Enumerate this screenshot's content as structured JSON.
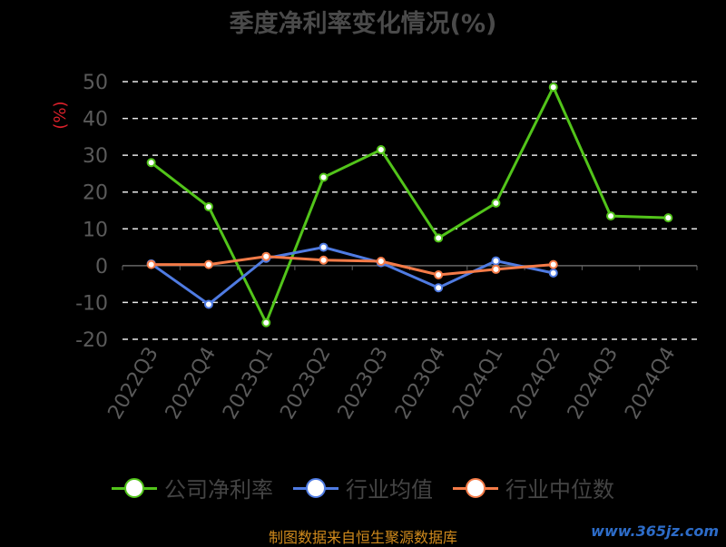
{
  "chart_data": {
    "type": "line",
    "title": "季度净利率变化情况(%)",
    "ylabel": "(%)",
    "xlabel": "",
    "ylim": [
      -20,
      50
    ],
    "yticks": [
      -20,
      -10,
      0,
      10,
      20,
      30,
      40,
      50
    ],
    "grid": true,
    "legend_position": "bottom",
    "categories": [
      "2022Q3",
      "2022Q4",
      "2023Q1",
      "2023Q2",
      "2023Q3",
      "2023Q4",
      "2024Q1",
      "2024Q2",
      "2024Q3",
      "2024Q4"
    ],
    "series": [
      {
        "name": "公司净利率",
        "color": "#52c41a",
        "values": [
          28.0,
          16.0,
          -15.5,
          24.0,
          31.5,
          7.5,
          17.0,
          48.5,
          13.5,
          13.0
        ]
      },
      {
        "name": "行业均值",
        "color": "#4f7be2",
        "values": [
          0.5,
          -10.5,
          2.0,
          5.0,
          0.8,
          -6.0,
          1.3,
          -2.0,
          null,
          null
        ]
      },
      {
        "name": "行业中位数",
        "color": "#f47b48",
        "values": [
          0.3,
          0.3,
          2.5,
          1.5,
          1.2,
          -2.5,
          -1.0,
          0.3,
          null,
          null
        ]
      }
    ]
  },
  "footer": "制图数据来自恒生聚源数据库",
  "watermark": "www.365jz.com"
}
